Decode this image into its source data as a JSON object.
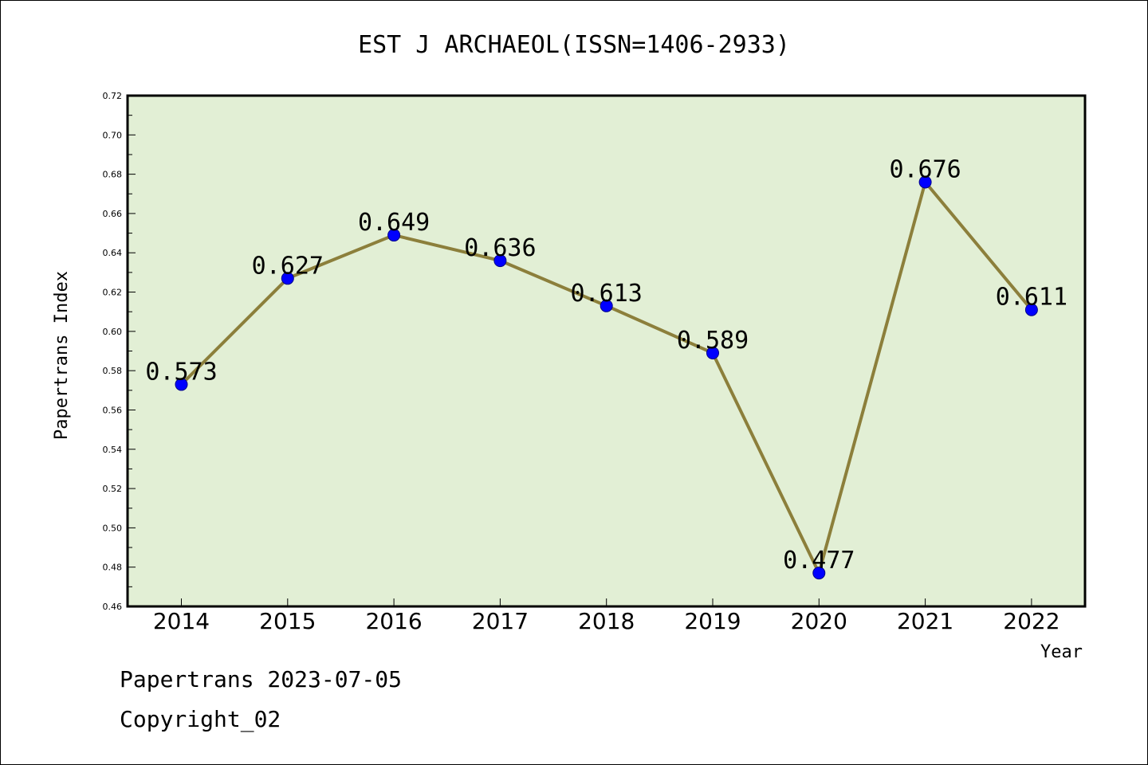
{
  "chart_data": {
    "type": "line",
    "title": "EST J ARCHAEOL(ISSN=1406-2933)",
    "xlabel": "Year",
    "ylabel": "Papertrans Index",
    "categories": [
      "2014",
      "2015",
      "2016",
      "2017",
      "2018",
      "2019",
      "2020",
      "2021",
      "2022"
    ],
    "series": [
      {
        "values": [
          0.573,
          0.627,
          0.649,
          0.636,
          0.613,
          0.589,
          0.477,
          0.676,
          0.611
        ]
      }
    ],
    "data_labels": [
      "0.573",
      "0.627",
      "0.649",
      "0.636",
      "0.613",
      "0.589",
      "0.477",
      "0.676",
      "0.611"
    ],
    "ylim": [
      0.46,
      0.72
    ],
    "yticks": [
      "0.46",
      "0.48",
      "0.50",
      "0.52",
      "0.54",
      "0.56",
      "0.58",
      "0.60",
      "0.62",
      "0.64",
      "0.66",
      "0.68",
      "0.70",
      "0.72"
    ],
    "grid": false,
    "colors": {
      "plot_background": "#e2efd5",
      "line": "#8c7f3b",
      "marker": "#0000ff"
    }
  },
  "footer": {
    "date": "Papertrans 2023-07-05",
    "copyright": "Copyright_02"
  }
}
